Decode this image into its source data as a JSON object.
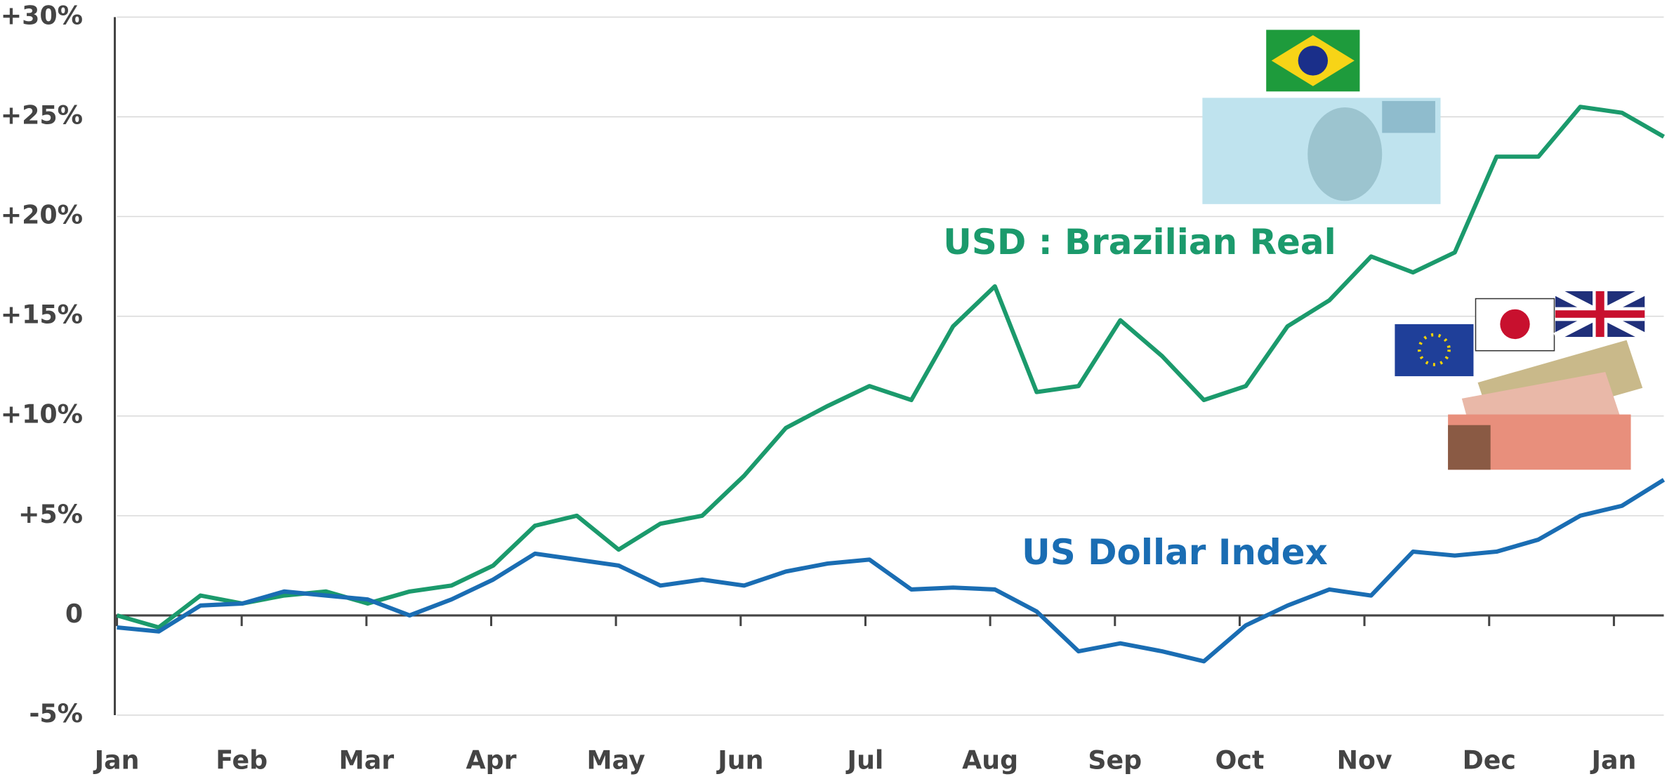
{
  "chart_data": {
    "type": "line",
    "xtick_labels": [
      "Jan",
      "Feb",
      "Mar",
      "Apr",
      "May",
      "Jun",
      "Jul",
      "Aug",
      "Sep",
      "Oct",
      "Nov",
      "Dec",
      "Jan"
    ],
    "ylim": [
      -5,
      30
    ],
    "yticks": [
      {
        "value": -5,
        "label": "-5%"
      },
      0,
      {
        "value": 5,
        "label": "+5%"
      },
      {
        "value": 10,
        "label": "+10%"
      },
      {
        "value": 15,
        "label": "+15%"
      },
      {
        "value": 20,
        "label": "+20%"
      },
      {
        "value": 25,
        "label": "+25%"
      },
      {
        "value": 30,
        "label": "+30%"
      }
    ],
    "grid": true,
    "annotations": [
      "USD : Brazilian Real",
      "US Dollar Index"
    ],
    "series": [
      {
        "name": "USD : Brazilian Real",
        "color": "#1b9a6c",
        "values": [
          0,
          -0.6,
          1.0,
          0.6,
          1.0,
          1.2,
          0.6,
          1.2,
          1.5,
          2.5,
          4.5,
          5.0,
          3.3,
          4.6,
          5.0,
          7.0,
          9.4,
          10.5,
          11.5,
          10.8,
          14.5,
          16.5,
          11.2,
          11.5,
          14.8,
          13.0,
          10.8,
          11.5,
          14.5,
          15.8,
          18.0,
          17.2,
          18.2,
          23.0,
          23.0,
          25.5,
          25.2,
          24.0
        ]
      },
      {
        "name": "US Dollar Index",
        "color": "#1a6db3",
        "values": [
          -0.6,
          -0.8,
          0.5,
          0.6,
          1.2,
          1.0,
          0.8,
          0,
          0.8,
          1.8,
          3.1,
          2.8,
          2.5,
          1.5,
          1.8,
          1.5,
          2.2,
          2.6,
          2.8,
          1.3,
          1.4,
          1.3,
          0.2,
          -1.8,
          -1.4,
          -1.8,
          -2.3,
          -0.5,
          0.5,
          1.3,
          1.0,
          3.2,
          3.0,
          3.2,
          3.8,
          5.0,
          5.5,
          6.8
        ]
      }
    ]
  }
}
